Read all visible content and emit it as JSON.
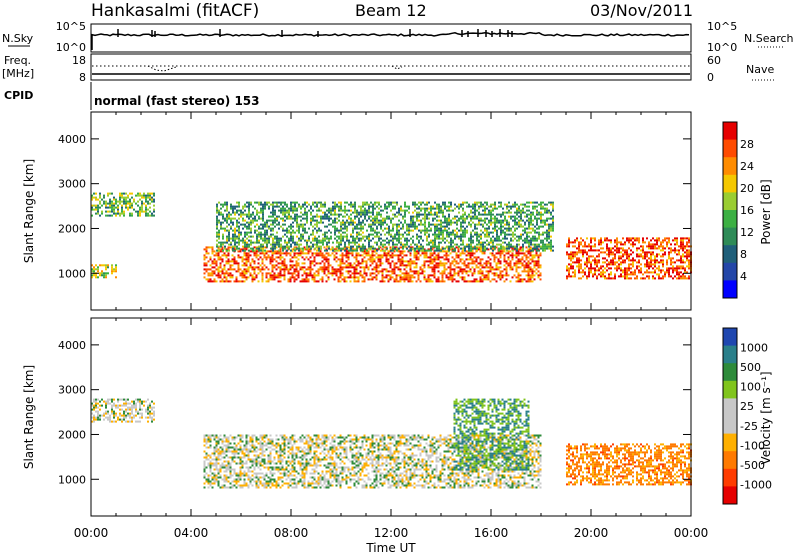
{
  "header": {
    "station": "Hankasalmi (fitACF)",
    "beam": "Beam 12",
    "date": "03/Nov/2011"
  },
  "summary": {
    "nsky_label": "N.Sky",
    "nsky_tick_top": "10^5",
    "nsky_tick_bottom": "10^0",
    "nsearch_label": "N.Search",
    "nsearch_tick_top": "10^5",
    "nsearch_tick_bottom": "10^0",
    "freq_label_top": "Freq.",
    "freq_label_bottom": "[MHz]",
    "freq_tick_top": "18",
    "freq_tick_bottom": "8",
    "nave_label": "Nave",
    "nave_tick_top": "60",
    "nave_tick_bottom": "0",
    "cpid_label": "CPID",
    "cpid_text": "normal (fast stereo) 153"
  },
  "axes": {
    "ylabel": "Slant Range [km]",
    "xlabel": "Time UT",
    "yticks": [
      "4000",
      "3000",
      "2000",
      "1000"
    ],
    "xticks": [
      "00:00",
      "04:00",
      "08:00",
      "12:00",
      "16:00",
      "20:00",
      "00:00"
    ]
  },
  "colorbars": {
    "power": {
      "label": "Power [dB]",
      "ticks": [
        "28",
        "24",
        "20",
        "16",
        "12",
        "8",
        "4"
      ],
      "colors": [
        "#e60000",
        "#ff4b00",
        "#ff8c00",
        "#f5c800",
        "#9acd32",
        "#3cb043",
        "#2e8b57",
        "#1f5f7a",
        "#2346a8",
        "#0000ff"
      ]
    },
    "velocity": {
      "label": "Velocity [m s⁻¹]",
      "ticks": [
        "1000",
        "500",
        "100",
        "25",
        "-25",
        "-100",
        "-500",
        "-1000"
      ],
      "colors": [
        "#1f47b0",
        "#2a7f8a",
        "#2e8b3a",
        "#80c41c",
        "#c8c8c8",
        "#c8c8c8",
        "#ffb000",
        "#ff7a00",
        "#ff3c00",
        "#e60000"
      ]
    }
  },
  "chart_data": [
    {
      "type": "heatmap",
      "title": "Power",
      "xlabel": "Time UT",
      "ylabel": "Slant Range [km]",
      "xlim": [
        "00:00",
        "24:00"
      ],
      "ylim": [
        180,
        4600
      ],
      "colorbar_label": "Power [dB]",
      "colorbar_range": [
        0,
        30
      ],
      "features": [
        {
          "region": "high-range early patch",
          "time": [
            "00:00",
            "02:30"
          ],
          "range_km": [
            2300,
            2800
          ],
          "power_db": 14
        },
        {
          "region": "near-range early echoes",
          "time": [
            "00:00",
            "01:00"
          ],
          "range_km": [
            900,
            1200
          ],
          "power_db": 18
        },
        {
          "region": "main band",
          "time": [
            "04:30",
            "18:00"
          ],
          "range_km": [
            800,
            1600
          ],
          "power_db": 26
        },
        {
          "region": "upper band",
          "time": [
            "05:00",
            "18:30"
          ],
          "range_km": [
            1500,
            2600
          ],
          "power_db": 12
        },
        {
          "region": "late patch",
          "time": [
            "19:00",
            "24:00"
          ],
          "range_km": [
            900,
            1800
          ],
          "power_db": 27
        }
      ]
    },
    {
      "type": "heatmap",
      "title": "Velocity",
      "xlabel": "Time UT",
      "ylabel": "Slant Range [km]",
      "xlim": [
        "00:00",
        "24:00"
      ],
      "ylim": [
        180,
        4600
      ],
      "colorbar_label": "Velocity [m s⁻¹]",
      "colorbar_range": [
        -1000,
        1000
      ],
      "features": [
        {
          "region": "ground scatter early",
          "time": [
            "00:00",
            "02:30"
          ],
          "range_km": [
            2300,
            2800
          ],
          "velocity_ms": 0
        },
        {
          "region": "main ground scatter",
          "time": [
            "04:30",
            "18:00"
          ],
          "range_km": [
            800,
            2000
          ],
          "velocity_ms": 0
        },
        {
          "region": "ionospheric positive",
          "time": [
            "14:30",
            "17:30"
          ],
          "range_km": [
            1200,
            2800
          ],
          "velocity_ms": 300
        },
        {
          "region": "late mixed",
          "time": [
            "19:00",
            "24:00"
          ],
          "range_km": [
            900,
            1800
          ],
          "velocity_ms": -200
        }
      ]
    }
  ]
}
